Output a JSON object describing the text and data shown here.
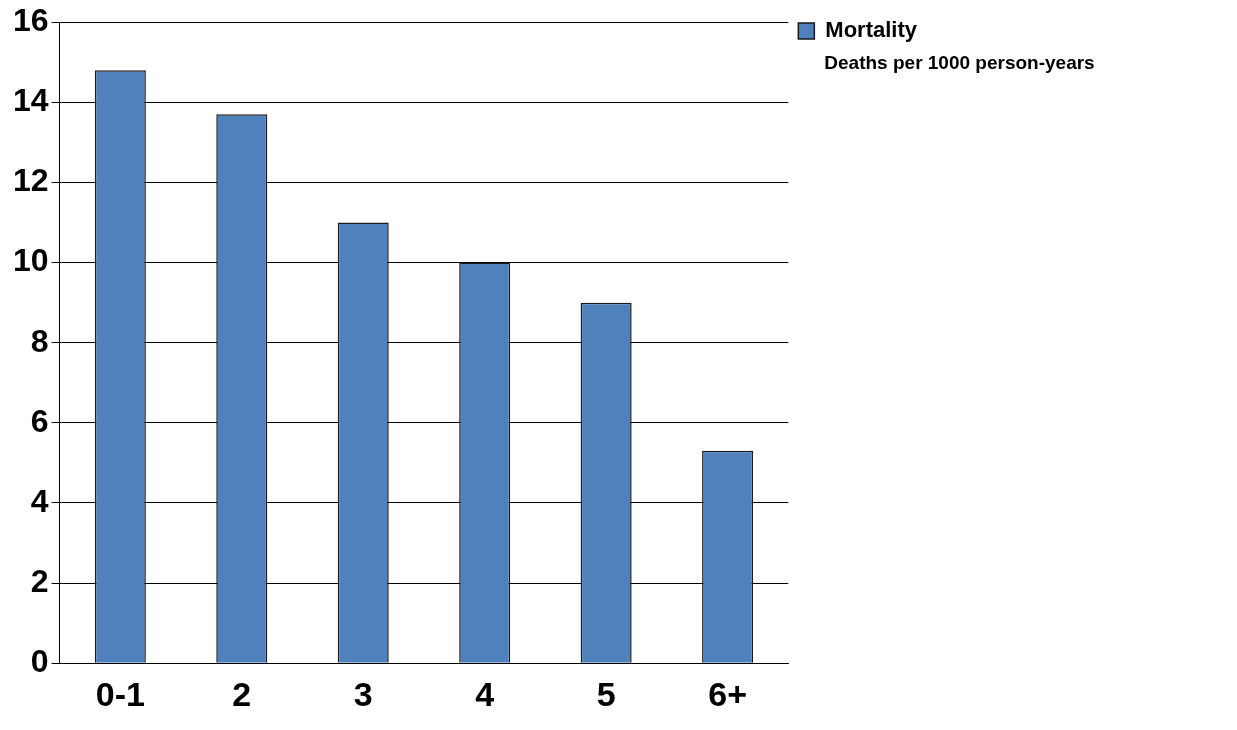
{
  "chart_data": {
    "type": "bar",
    "categories": [
      "0-1",
      "2",
      "3",
      "4",
      "5",
      "6+"
    ],
    "series": [
      {
        "name": "Mortality",
        "color": "#4f81bd",
        "values": [
          14.8,
          13.7,
          11,
          10,
          9,
          5.3
        ]
      }
    ],
    "ylim": [
      0,
      16
    ],
    "yticks": [
      0,
      2,
      4,
      6,
      8,
      10,
      12,
      14,
      16
    ],
    "grid": "y",
    "legend": "top right",
    "annotations": [
      "Deaths per 1000 person-years"
    ]
  }
}
